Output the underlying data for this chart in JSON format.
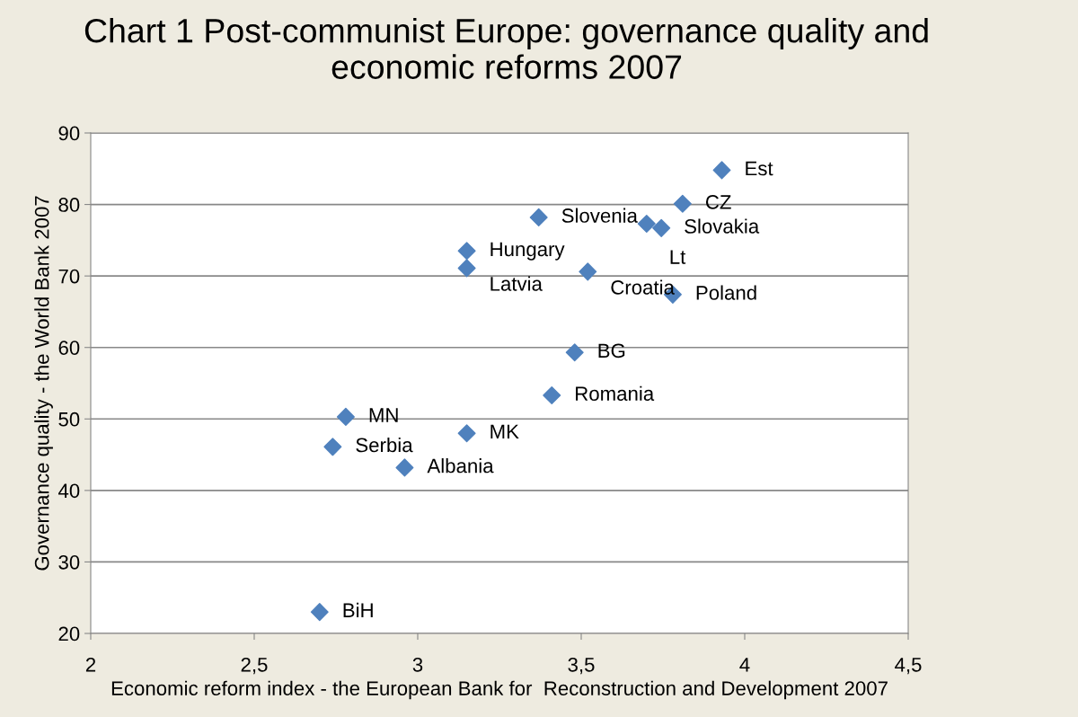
{
  "chart_data": {
    "type": "scatter",
    "title": "Chart 1 Post-communist Europe: governance quality and\neconomic reforms 2007",
    "xlabel": "Economic reform index - the European Bank for  Reconstruction and Development 2007",
    "ylabel": "Governance quality - the World Bank 2007",
    "x": [
      3.93,
      3.81,
      3.37,
      3.745,
      3.7,
      3.15,
      3.15,
      3.52,
      3.78,
      3.48,
      3.41,
      2.78,
      3.15,
      2.74,
      2.96,
      2.7
    ],
    "values": [
      84.8,
      80.1,
      78.2,
      76.7,
      77.3,
      73.5,
      71.1,
      70.6,
      67.4,
      59.3,
      53.3,
      50.3,
      48.0,
      46.1,
      43.2,
      23.0
    ],
    "color": "#4f81bd",
    "marker": "diamond",
    "grid": "y",
    "legend": false,
    "xlim": [
      2,
      4.5
    ],
    "xticks": [
      2,
      {
        "value": 2.5,
        "label": "2,5"
      },
      3,
      {
        "value": 3.5,
        "label": "3,5"
      },
      4,
      {
        "value": 4.5,
        "label": "4,5"
      }
    ],
    "ylim": [
      20,
      90
    ],
    "yticks": [
      20,
      30,
      40,
      50,
      60,
      70,
      80,
      90
    ],
    "annotations": [
      {
        "text": "Est",
        "x": 3.93,
        "y": 84.8
      },
      {
        "text": "CZ",
        "x": 3.81,
        "y": 80.1
      },
      {
        "text": "Slovenia",
        "x": 3.37,
        "y": 78.2
      },
      {
        "text": "Slovakia",
        "x": 3.745,
        "y": 76.7
      },
      {
        "text": "Lt",
        "x": 3.7,
        "y": 77.3
      },
      {
        "text": "Hungary",
        "x": 3.15,
        "y": 73.5
      },
      {
        "text": "Latvia",
        "x": 3.15,
        "y": 71.1
      },
      {
        "text": "Croatia",
        "x": 3.52,
        "y": 70.6
      },
      {
        "text": "Poland",
        "x": 3.78,
        "y": 67.4
      },
      {
        "text": "BG",
        "x": 3.48,
        "y": 59.3
      },
      {
        "text": "Romania",
        "x": 3.41,
        "y": 53.3
      },
      {
        "text": "MN",
        "x": 2.78,
        "y": 50.3
      },
      {
        "text": "MK",
        "x": 3.15,
        "y": 48.0
      },
      {
        "text": "Serbia",
        "x": 2.74,
        "y": 46.1
      },
      {
        "text": "Albania",
        "x": 2.96,
        "y": 43.2
      },
      {
        "text": "BiH",
        "x": 2.7,
        "y": 23.0
      }
    ]
  }
}
